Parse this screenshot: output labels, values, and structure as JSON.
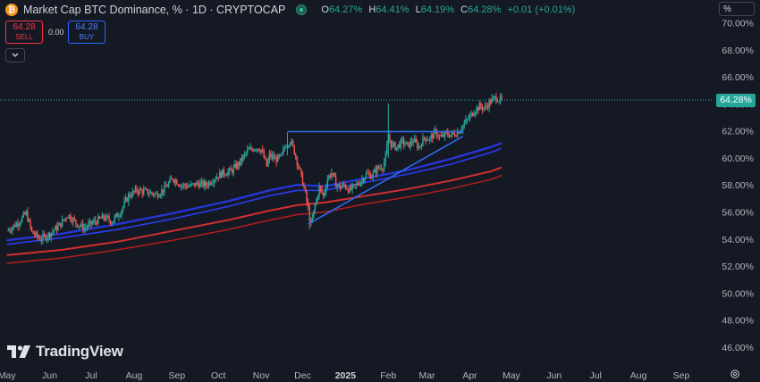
{
  "header": {
    "coin_glyph": "₿",
    "title": "Market Cap BTC Dominance, % · 1D · CRYPTOCAP",
    "ohlc": [
      {
        "k": "O",
        "v": "64.27%"
      },
      {
        "k": "H",
        "v": "64.41%"
      },
      {
        "k": "L",
        "v": "64.19%"
      },
      {
        "k": "C",
        "v": "64.28%"
      }
    ],
    "change": "+0.01 (+0.01%)"
  },
  "trade": {
    "sell_price": "64.28",
    "sell_label": "SELL",
    "spread": "0.00",
    "buy_price": "64.28",
    "buy_label": "BUY"
  },
  "collapse_icon": "chevron-down-icon",
  "scale_box_label": "%",
  "brand": {
    "name": "TradingView",
    "icon": "tradingview-logo-icon"
  },
  "settings_icon": "gear-icon",
  "colors": {
    "up": "#26a69a",
    "down": "#ef5350",
    "blue_ma": "#2436d6",
    "red_ma": "#d32f2f",
    "trendline": "#2e6be6",
    "background": "#151924"
  },
  "chart_data": {
    "type": "candlestick",
    "symbol": "Market Cap BTC Dominance, %",
    "interval": "1D",
    "last_price_label": "64.28%",
    "last_price": 64.28,
    "ylim": [
      45.0,
      70.5
    ],
    "y_ticks": [
      "46.00%",
      "48.00%",
      "50.00%",
      "52.00%",
      "54.00%",
      "56.00%",
      "58.00%",
      "60.00%",
      "62.00%",
      "64.00%",
      "66.00%",
      "68.00%",
      "70.00%"
    ],
    "y_tick_values": [
      46,
      48,
      50,
      52,
      54,
      56,
      58,
      60,
      62,
      64,
      66,
      68,
      70
    ],
    "x_ticks": [
      "May",
      "Jun",
      "Jul",
      "Aug",
      "Sep",
      "Oct",
      "Nov",
      "Dec",
      "2025",
      "Feb",
      "Mar",
      "Apr",
      "May",
      "Jun",
      "Jul",
      "Aug",
      "Sep"
    ],
    "x_tick_days": [
      0,
      31,
      61,
      92,
      123,
      153,
      184,
      214,
      245,
      276,
      304,
      335,
      365,
      396,
      426,
      457,
      488
    ],
    "x_day_range": [
      -5,
      510
    ],
    "grid": false,
    "close_path": [
      [
        0,
        54.6
      ],
      [
        8,
        55.2
      ],
      [
        14,
        55.9
      ],
      [
        18,
        54.5
      ],
      [
        24,
        54.0
      ],
      [
        30,
        54.3
      ],
      [
        38,
        55.0
      ],
      [
        44,
        55.8
      ],
      [
        50,
        55.2
      ],
      [
        56,
        54.8
      ],
      [
        62,
        55.2
      ],
      [
        70,
        55.6
      ],
      [
        76,
        55.3
      ],
      [
        82,
        56.0
      ],
      [
        88,
        57.2
      ],
      [
        94,
        57.6
      ],
      [
        100,
        57.5
      ],
      [
        108,
        57.3
      ],
      [
        114,
        57.7
      ],
      [
        120,
        58.5
      ],
      [
        126,
        58.0
      ],
      [
        132,
        57.9
      ],
      [
        138,
        58.1
      ],
      [
        144,
        58.0
      ],
      [
        150,
        58.5
      ],
      [
        156,
        58.9
      ],
      [
        162,
        59.0
      ],
      [
        168,
        59.6
      ],
      [
        174,
        60.5
      ],
      [
        180,
        60.8
      ],
      [
        184,
        60.6
      ],
      [
        188,
        59.4
      ],
      [
        190,
        60.2
      ],
      [
        194,
        59.9
      ],
      [
        198,
        60.0
      ],
      [
        202,
        61.0
      ],
      [
        205,
        61.3
      ],
      [
        208,
        60.5
      ],
      [
        212,
        59.0
      ],
      [
        215,
        57.8
      ],
      [
        218,
        56.2
      ],
      [
        220,
        55.0
      ],
      [
        223,
        56.5
      ],
      [
        226,
        57.8
      ],
      [
        229,
        57.2
      ],
      [
        232,
        58.5
      ],
      [
        235,
        58.9
      ],
      [
        238,
        58.1
      ],
      [
        241,
        57.8
      ],
      [
        244,
        58.0
      ],
      [
        248,
        57.6
      ],
      [
        252,
        57.9
      ],
      [
        256,
        58.3
      ],
      [
        260,
        58.8
      ],
      [
        264,
        58.7
      ],
      [
        268,
        59.2
      ],
      [
        272,
        59.4
      ],
      [
        274,
        60.0
      ],
      [
        276,
        61.7
      ],
      [
        278,
        61.0
      ],
      [
        282,
        60.8
      ],
      [
        286,
        61.2
      ],
      [
        290,
        60.9
      ],
      [
        294,
        61.3
      ],
      [
        298,
        60.8
      ],
      [
        302,
        61.5
      ],
      [
        306,
        61.4
      ],
      [
        310,
        61.9
      ],
      [
        314,
        61.5
      ],
      [
        318,
        61.8
      ],
      [
        322,
        61.7
      ],
      [
        326,
        61.9
      ],
      [
        330,
        62.4
      ],
      [
        334,
        62.9
      ],
      [
        338,
        63.5
      ],
      [
        342,
        63.8
      ],
      [
        346,
        63.7
      ],
      [
        350,
        64.2
      ],
      [
        354,
        64.5
      ],
      [
        356,
        64.3
      ],
      [
        358,
        64.28
      ]
    ],
    "spikes": [
      {
        "day": 276,
        "high": 64.05,
        "low": 60.0
      },
      {
        "day": 219,
        "high": 56.4,
        "low": 54.7
      },
      {
        "day": 203,
        "high": 61.9,
        "low": 60.2
      }
    ],
    "moving_averages": [
      {
        "color": "#2436d6",
        "width": 2.4,
        "values": [
          [
            0,
            53.9
          ],
          [
            40,
            54.4
          ],
          [
            80,
            55.1
          ],
          [
            120,
            55.9
          ],
          [
            160,
            56.8
          ],
          [
            190,
            57.6
          ],
          [
            210,
            58.0
          ],
          [
            230,
            57.9
          ],
          [
            260,
            58.5
          ],
          [
            290,
            59.1
          ],
          [
            320,
            59.9
          ],
          [
            350,
            60.8
          ],
          [
            358,
            61.1
          ]
        ]
      },
      {
        "color": "#2a3df0",
        "width": 1.6,
        "values": [
          [
            0,
            53.6
          ],
          [
            40,
            54.1
          ],
          [
            80,
            54.7
          ],
          [
            120,
            55.5
          ],
          [
            160,
            56.4
          ],
          [
            190,
            57.2
          ],
          [
            210,
            57.6
          ],
          [
            230,
            57.6
          ],
          [
            260,
            58.2
          ],
          [
            290,
            58.8
          ],
          [
            320,
            59.5
          ],
          [
            350,
            60.4
          ],
          [
            358,
            60.7
          ]
        ]
      },
      {
        "color": "#d32f2f",
        "width": 2.0,
        "values": [
          [
            0,
            52.8
          ],
          [
            40,
            53.2
          ],
          [
            80,
            53.8
          ],
          [
            120,
            54.6
          ],
          [
            160,
            55.4
          ],
          [
            190,
            56.1
          ],
          [
            210,
            56.5
          ],
          [
            230,
            56.7
          ],
          [
            260,
            57.2
          ],
          [
            290,
            57.7
          ],
          [
            320,
            58.3
          ],
          [
            350,
            59.0
          ],
          [
            358,
            59.3
          ]
        ]
      },
      {
        "color": "#b71c1c",
        "width": 1.5,
        "values": [
          [
            0,
            52.2
          ],
          [
            40,
            52.6
          ],
          [
            80,
            53.2
          ],
          [
            120,
            53.9
          ],
          [
            160,
            54.7
          ],
          [
            190,
            55.4
          ],
          [
            210,
            55.8
          ],
          [
            230,
            56.0
          ],
          [
            260,
            56.6
          ],
          [
            290,
            57.1
          ],
          [
            320,
            57.7
          ],
          [
            350,
            58.4
          ],
          [
            358,
            58.7
          ]
        ]
      }
    ],
    "trendlines": [
      {
        "name": "resistance",
        "from": [
          203,
          61.95
        ],
        "to": [
          330,
          61.95
        ]
      },
      {
        "name": "support",
        "from": [
          218,
          55.1
        ],
        "to": [
          330,
          61.6
        ]
      }
    ]
  }
}
